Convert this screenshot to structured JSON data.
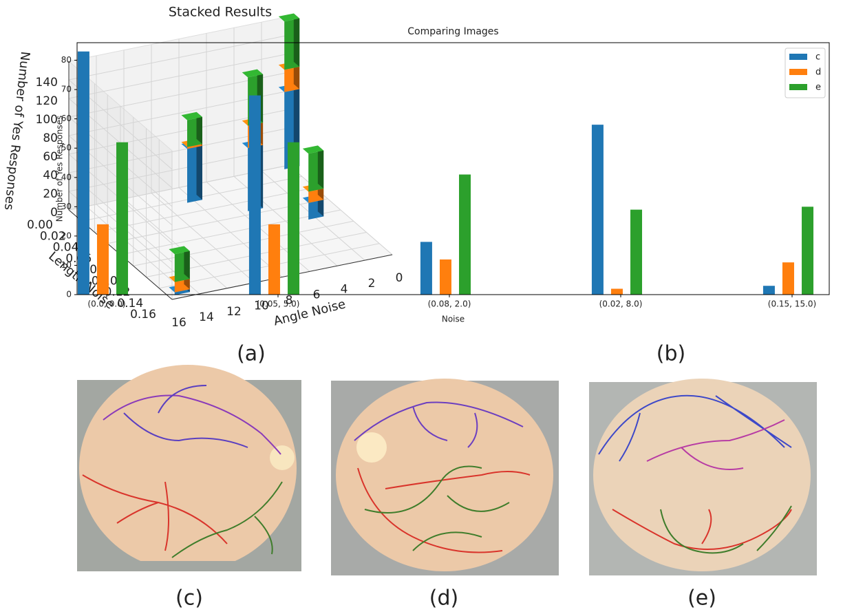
{
  "chart_data": [
    {
      "type": "bar3d",
      "title": "Stacked Results",
      "xlabel": "Length Noise",
      "ylabel": "Angle Noise",
      "zlabel": "Number of Yes Responses",
      "x": [
        0.0,
        0.05,
        0.08,
        0.02,
        0.15
      ],
      "y": [
        0.0,
        5.0,
        2.0,
        8.0,
        15.0
      ],
      "series": [
        {
          "color": "#1f77b4",
          "values": [
            83,
            68,
            18,
            58,
            3
          ]
        },
        {
          "color": "#ff7f0e",
          "values": [
            24,
            24,
            12,
            2,
            11
          ]
        },
        {
          "color": "#2ca02c",
          "values": [
            52,
            52,
            41,
            29,
            30
          ]
        }
      ],
      "xlim": [
        0,
        0.16
      ],
      "xticks": [
        {
          "value": 0,
          "label": "0.00"
        },
        0.02,
        0.04,
        0.06,
        0.08,
        {
          "value": 0.1,
          "label": "0.10"
        },
        0.12,
        0.14,
        0.16
      ],
      "ylim": [
        0,
        16
      ],
      "yticks": [
        0,
        2,
        4,
        6,
        8,
        10,
        12,
        14,
        16
      ],
      "zlim": [
        0,
        160
      ],
      "zticks": [
        0,
        20,
        40,
        60,
        80,
        100,
        120,
        140
      ],
      "grid": true
    },
    {
      "type": "bar",
      "title": "Comparing Images",
      "xlabel": "Noise",
      "ylabel": "Number of Yes Responses",
      "categories": [
        "(0.0, 0.0)",
        "(0.05, 5.0)",
        "(0.08, 2.0)",
        "(0.02, 8.0)",
        "(0.15, 15.0)"
      ],
      "series": [
        {
          "name": "c",
          "color": "#1f77b4",
          "values": [
            83,
            68,
            18,
            58,
            3
          ]
        },
        {
          "name": "d",
          "color": "#ff7f0e",
          "values": [
            24,
            24,
            12,
            2,
            11
          ]
        },
        {
          "name": "e",
          "color": "#2ca02c",
          "values": [
            52,
            52,
            41,
            29,
            30
          ]
        }
      ],
      "ylim": [
        0,
        86
      ],
      "yticks": [
        0,
        10,
        20,
        30,
        40,
        50,
        60,
        70,
        80
      ],
      "legend": "upper right"
    }
  ],
  "panel_labels": [
    "(a)",
    "(b)",
    "(c)",
    "(d)",
    "(e)"
  ]
}
